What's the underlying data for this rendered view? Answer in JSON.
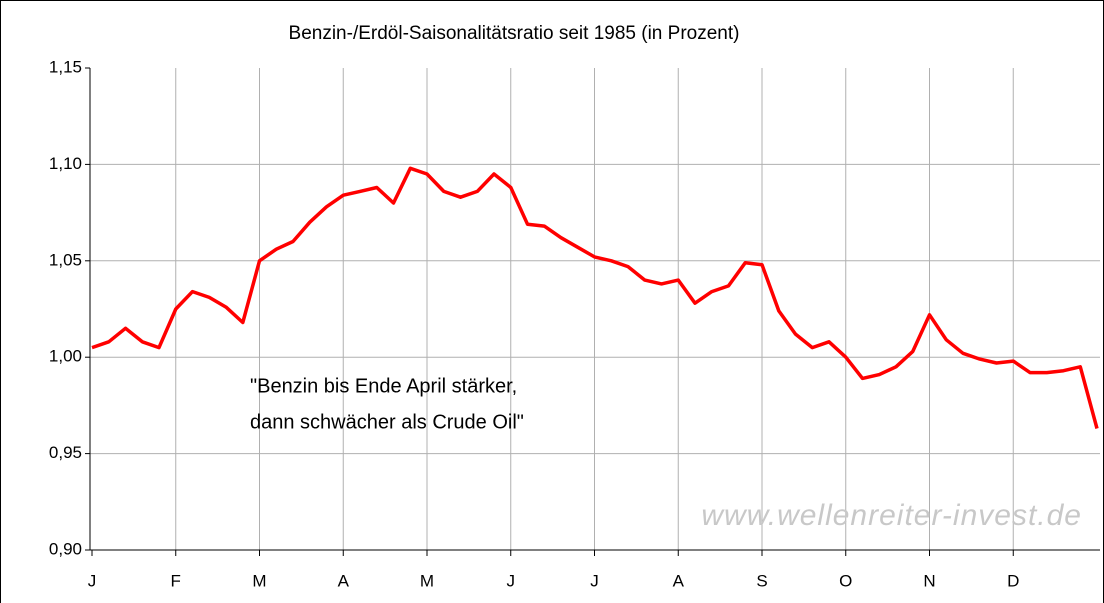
{
  "chart_data": {
    "type": "line",
    "title": "Benzin-/Erdöl-Saisonalitätsratio seit 1985 (in Prozent)",
    "annotation": [
      "\"Benzin bis Ende April stärker,",
      "dann schwächer als Crude Oil\""
    ],
    "watermark": "www.wellenreiter-invest.de",
    "categories": [
      "J",
      null,
      null,
      null,
      null,
      "F",
      null,
      null,
      null,
      null,
      "M",
      null,
      null,
      null,
      null,
      "A",
      null,
      null,
      null,
      null,
      "M",
      null,
      null,
      null,
      null,
      "J",
      null,
      null,
      null,
      null,
      "J",
      null,
      null,
      null,
      null,
      "A",
      null,
      null,
      null,
      null,
      "S",
      null,
      null,
      null,
      null,
      "O",
      null,
      null,
      null,
      null,
      "N",
      null,
      null,
      null,
      null,
      "D",
      null,
      null,
      null,
      null,
      null
    ],
    "series": [
      {
        "name": "Benzin/Erdöl",
        "color": "#ff0000",
        "values": [
          1.005,
          1.008,
          1.015,
          1.008,
          1.005,
          1.025,
          1.034,
          1.031,
          1.026,
          1.018,
          1.05,
          1.056,
          1.06,
          1.07,
          1.078,
          1.084,
          1.086,
          1.088,
          1.08,
          1.098,
          1.095,
          1.086,
          1.083,
          1.086,
          1.095,
          1.088,
          1.069,
          1.068,
          1.062,
          1.057,
          1.052,
          1.05,
          1.047,
          1.04,
          1.038,
          1.04,
          1.028,
          1.034,
          1.037,
          1.049,
          1.048,
          1.024,
          1.012,
          1.005,
          1.008,
          1.0,
          0.989,
          0.991,
          0.995,
          1.003,
          1.022,
          1.009,
          1.002,
          0.999,
          0.997,
          0.998,
          0.992,
          0.992,
          0.993,
          0.995,
          0.963
        ]
      }
    ],
    "ylim": [
      0.9,
      1.15
    ],
    "yticks": [
      {
        "value": 0.9,
        "label": "0,90"
      },
      {
        "value": 0.95,
        "label": "0,95"
      },
      {
        "value": 1.0,
        "label": "1,00"
      },
      {
        "value": 1.05,
        "label": "1,05"
      },
      {
        "value": 1.1,
        "label": "1,10"
      },
      {
        "value": 1.15,
        "label": "1,15"
      }
    ],
    "grid": true
  }
}
